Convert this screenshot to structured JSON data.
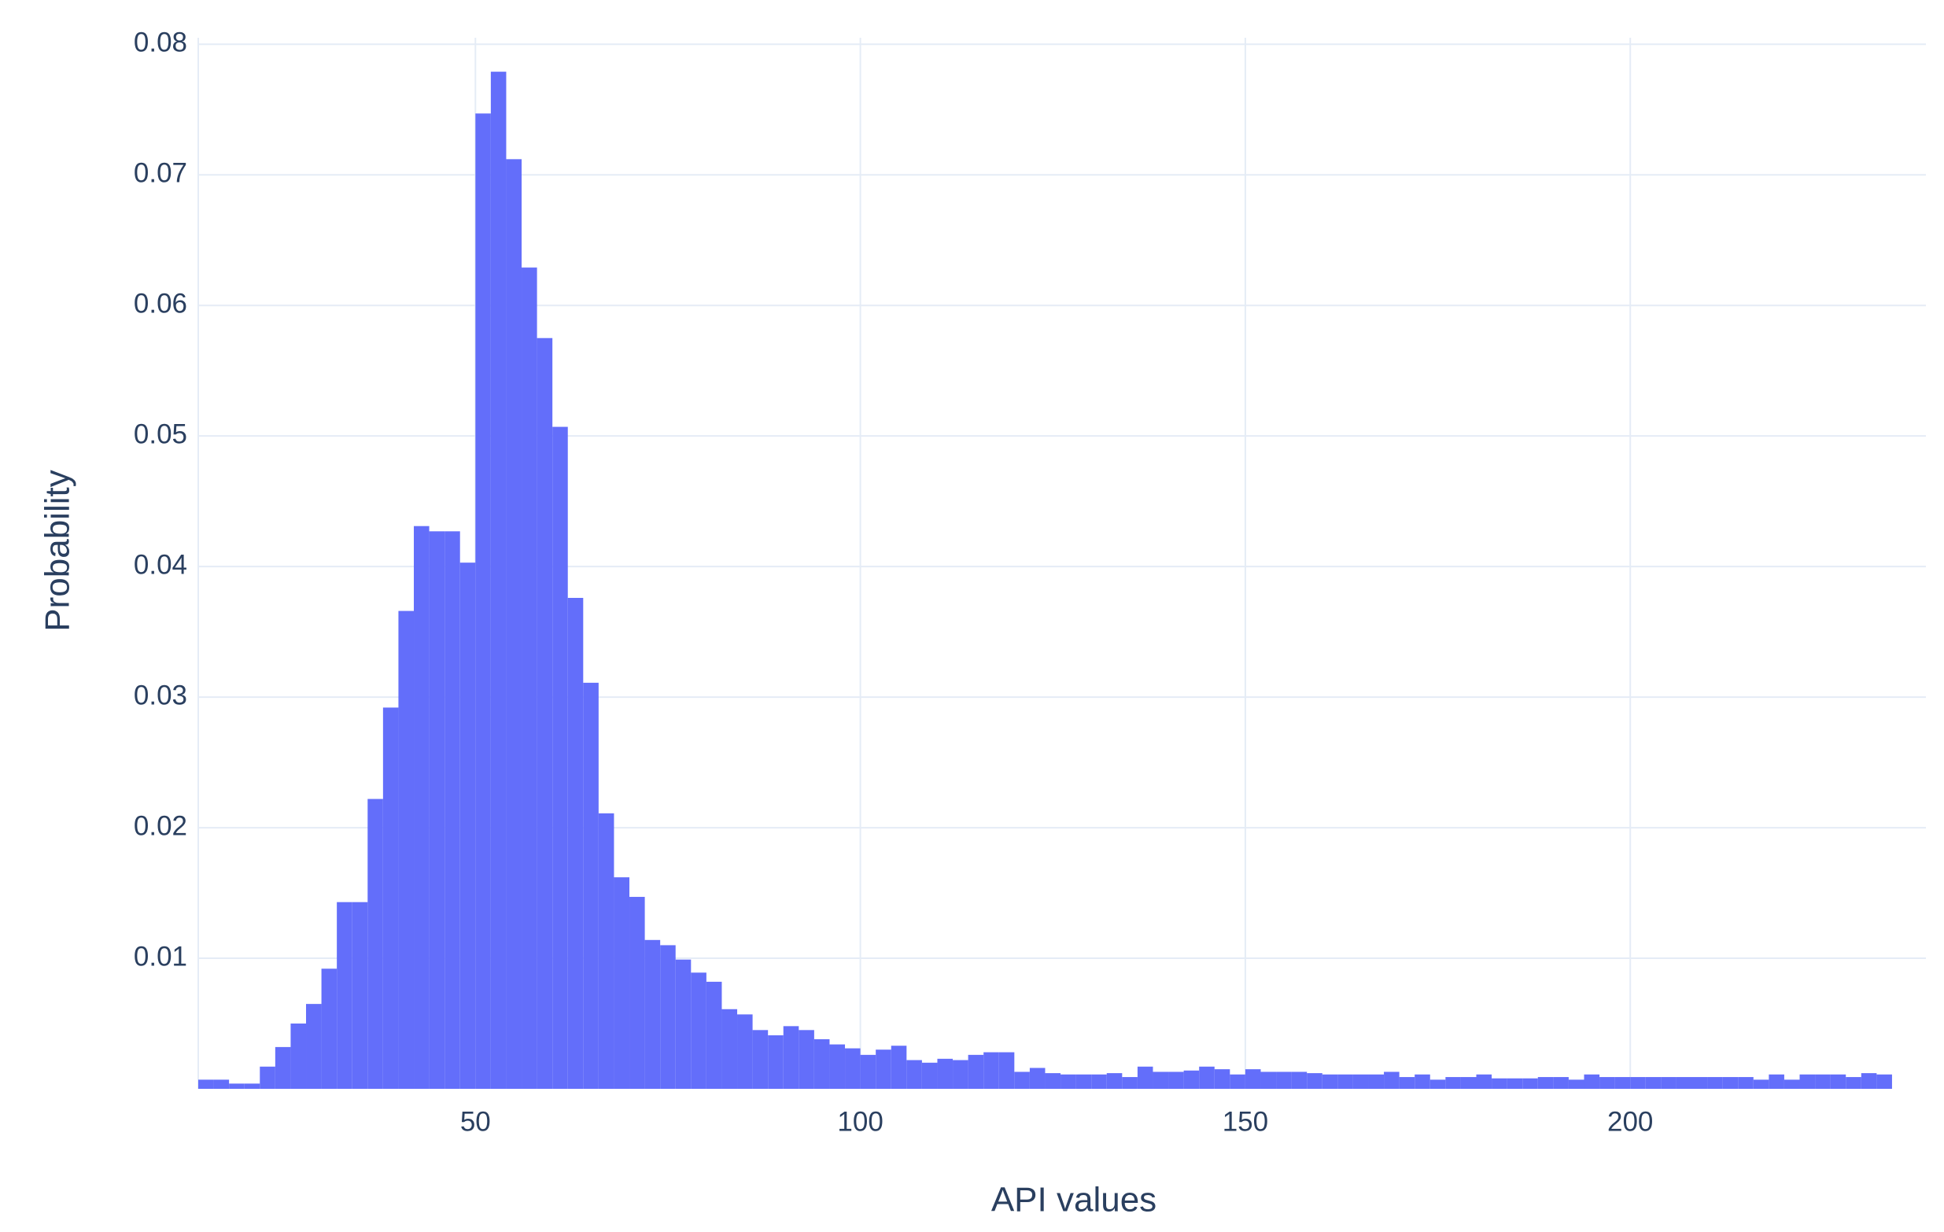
{
  "chart_data": {
    "type": "histogram",
    "x_label": "API values",
    "y_label": "Probability",
    "color": "#636efa",
    "grid": true,
    "bins": [
      14,
      16,
      18,
      20,
      22,
      24,
      26,
      28,
      30,
      32,
      34,
      36,
      38,
      40,
      42,
      44,
      46,
      48,
      50,
      52,
      54,
      56,
      58,
      60,
      62,
      64,
      66,
      68,
      70,
      72,
      74,
      76,
      78,
      80,
      82,
      84,
      86,
      88,
      90,
      92,
      94,
      96,
      98,
      100,
      102,
      104,
      106,
      108,
      110,
      112,
      114,
      116,
      118,
      120,
      122,
      124,
      126,
      128,
      130,
      132,
      134,
      136,
      138,
      140,
      142,
      144,
      146,
      148,
      150,
      152,
      154,
      156,
      158,
      160,
      162,
      164,
      166,
      168,
      170,
      172,
      174,
      176,
      178,
      180,
      182,
      184,
      186,
      188,
      190,
      192,
      194,
      196,
      198,
      200,
      202,
      204,
      206,
      208,
      210,
      212,
      214,
      216,
      218,
      220,
      222,
      224,
      226,
      228,
      230,
      232,
      234
    ],
    "values": [
      0.0007,
      0.0007,
      0.0004,
      0.0004,
      0.0017,
      0.0032,
      0.005,
      0.0065,
      0.0092,
      0.0143,
      0.0143,
      0.0222,
      0.0292,
      0.0366,
      0.0431,
      0.0427,
      0.0427,
      0.0403,
      0.0747,
      0.0779,
      0.0712,
      0.0629,
      0.0575,
      0.0507,
      0.0376,
      0.0311,
      0.0211,
      0.0162,
      0.0147,
      0.0114,
      0.011,
      0.0099,
      0.0089,
      0.0082,
      0.0061,
      0.0057,
      0.0045,
      0.0041,
      0.0048,
      0.0045,
      0.0038,
      0.0034,
      0.0031,
      0.0026,
      0.003,
      0.0033,
      0.0022,
      0.002,
      0.0023,
      0.0022,
      0.0026,
      0.0028,
      0.0028,
      0.0013,
      0.0016,
      0.0012,
      0.0011,
      0.0011,
      0.0011,
      0.0012,
      0.0009,
      0.0017,
      0.0013,
      0.0013,
      0.0014,
      0.0017,
      0.0015,
      0.0011,
      0.0015,
      0.0013,
      0.0013,
      0.0013,
      0.0012,
      0.0011,
      0.0011,
      0.0011,
      0.0011,
      0.0013,
      0.0009,
      0.0011,
      0.0007,
      0.0009,
      0.0009,
      0.0011,
      0.0008,
      0.0008,
      0.0008,
      0.0009,
      0.0009,
      0.0007,
      0.0011,
      0.0009,
      0.0009,
      0.0009,
      0.0009,
      0.0009,
      0.0009,
      0.0009,
      0.0009,
      0.0009,
      0.0009,
      0.0007,
      0.0011,
      0.0007,
      0.0011,
      0.0011,
      0.0011,
      0.0009,
      0.0012,
      0.0011
    ],
    "xlim": [
      14,
      238.4
    ],
    "xticks": [
      50,
      100,
      150,
      200
    ],
    "ylim": [
      0,
      0.0805
    ],
    "yticks": [
      0.01,
      0.02,
      0.03,
      0.04,
      0.05,
      0.06,
      0.07,
      0.08
    ]
  }
}
